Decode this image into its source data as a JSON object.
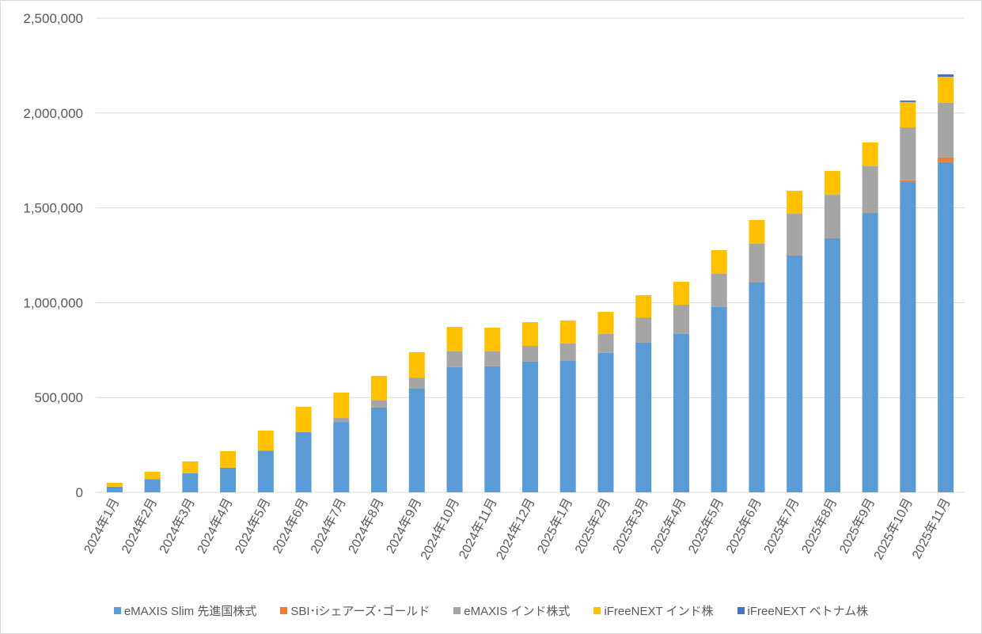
{
  "chart_data": {
    "type": "bar",
    "stacked": true,
    "title": "",
    "xlabel": "",
    "ylabel": "",
    "ylim": [
      0,
      2500000
    ],
    "yticks": [
      0,
      500000,
      1000000,
      1500000,
      2000000,
      2500000
    ],
    "ytick_labels": [
      "0",
      "500,000",
      "1,000,000",
      "1,500,000",
      "2,000,000",
      "2,500,000"
    ],
    "grid": true,
    "legend_position": "bottom",
    "categories": [
      "2024年1月",
      "2024年2月",
      "2024年3月",
      "2024年4月",
      "2024年5月",
      "2024年6月",
      "2024年7月",
      "2024年8月",
      "2024年9月",
      "2024年10月",
      "2024年11月",
      "2024年12月",
      "2025年1月",
      "2025年2月",
      "2025年3月",
      "2025年4月",
      "2025年5月",
      "2025年6月",
      "2025年7月",
      "2025年8月",
      "2025年9月",
      "2025年10月",
      "2025年11月"
    ],
    "series": [
      {
        "name": "eMAXIS Slim 先進国株式",
        "color": "#5b9bd5",
        "values": [
          30000,
          70000,
          100000,
          130000,
          220000,
          317000,
          371000,
          447000,
          547000,
          660000,
          664000,
          689000,
          693000,
          735000,
          789000,
          835000,
          977000,
          1106000,
          1248000,
          1340000,
          1473000,
          1636000,
          1741000
        ]
      },
      {
        "name": "SBI･iシェアーズ･ゴールド",
        "color": "#ed7d31",
        "values": [
          0,
          0,
          0,
          0,
          0,
          0,
          0,
          0,
          0,
          0,
          0,
          0,
          0,
          0,
          0,
          0,
          0,
          0,
          0,
          0,
          0,
          9000,
          25000
        ]
      },
      {
        "name": "eMAXIS インド株式",
        "color": "#a5a5a5",
        "values": [
          0,
          0,
          0,
          0,
          0,
          0,
          21000,
          37000,
          58000,
          83000,
          79000,
          83000,
          92000,
          100000,
          133000,
          154000,
          175000,
          205000,
          221000,
          229000,
          247000,
          279000,
          288000
        ]
      },
      {
        "name": "iFreeNEXT インド株",
        "color": "#ffc000",
        "values": [
          20000,
          38000,
          63000,
          87000,
          106000,
          134000,
          134000,
          130000,
          134000,
          129000,
          125000,
          125000,
          121000,
          117000,
          117000,
          121000,
          125000,
          125000,
          121000,
          126000,
          125000,
          134000,
          137000
        ]
      },
      {
        "name": "iFreeNEXT ベトナム株",
        "color": "#4472c4",
        "values": [
          0,
          0,
          0,
          0,
          0,
          0,
          0,
          0,
          0,
          0,
          0,
          0,
          0,
          0,
          0,
          0,
          0,
          0,
          0,
          0,
          0,
          8000,
          13000
        ]
      }
    ]
  }
}
